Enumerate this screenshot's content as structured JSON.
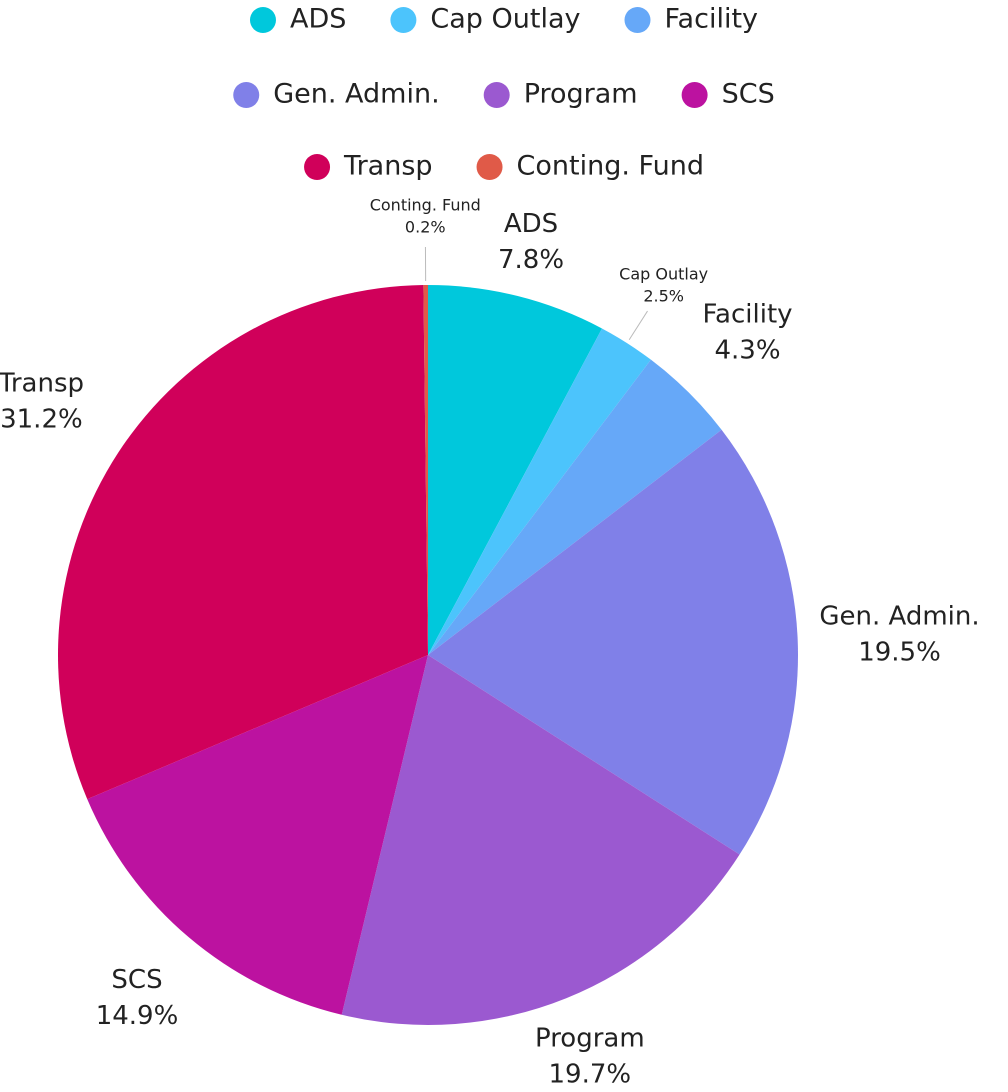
{
  "chart_data": {
    "type": "pie",
    "categories": [
      "ADS",
      "Cap Outlay",
      "Facility",
      "Gen. Admin.",
      "Program",
      "SCS",
      "Transp",
      "Conting. Fund"
    ],
    "values": [
      7.8,
      2.5,
      4.3,
      19.5,
      19.7,
      14.9,
      31.2,
      0.2
    ],
    "value_labels": [
      "7.8%",
      "2.5%",
      "4.3%",
      "19.5%",
      "19.7%",
      "14.9%",
      "31.2%",
      "0.2%"
    ],
    "colors": [
      "#00c8dc",
      "#4cc4fc",
      "#66a8f8",
      "#8080e8",
      "#9b59d0",
      "#bc12a0",
      "#d0005a",
      "#e05a48"
    ],
    "legend": "top"
  }
}
